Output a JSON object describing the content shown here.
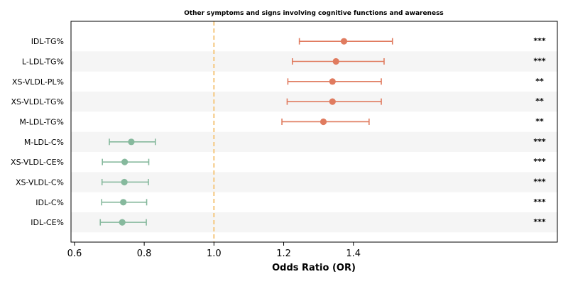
{
  "chart_data": {
    "type": "forest",
    "title": "Other symptoms and signs involving cognitive functions and awareness",
    "xlabel": "Odds Ratio (OR)",
    "xlim": [
      0.59,
      1.985
    ],
    "xticks": [
      "0.6",
      "0.8",
      "1.0",
      "1.2",
      "1.4"
    ],
    "xtick_values": [
      0.6,
      0.8,
      1.0,
      1.2,
      1.4
    ],
    "reference_line": 1.0,
    "grid": false,
    "colors": {
      "positive": "#e07b5f",
      "negative": "#86b99d",
      "reference": "#f5c77e",
      "band": "#f5f5f5"
    },
    "rows": [
      {
        "label": "IDL-TG%",
        "or": 1.373,
        "ci_low": 1.245,
        "ci_high": 1.512,
        "sig": "***",
        "direction": "positive"
      },
      {
        "label": "L-LDL-TG%",
        "or": 1.35,
        "ci_low": 1.225,
        "ci_high": 1.488,
        "sig": "***",
        "direction": "positive"
      },
      {
        "label": "XS-VLDL-PL%",
        "or": 1.34,
        "ci_low": 1.212,
        "ci_high": 1.48,
        "sig": "**",
        "direction": "positive"
      },
      {
        "label": "XS-VLDL-TG%",
        "or": 1.34,
        "ci_low": 1.21,
        "ci_high": 1.48,
        "sig": "**",
        "direction": "positive"
      },
      {
        "label": "M-LDL-TG%",
        "or": 1.314,
        "ci_low": 1.195,
        "ci_high": 1.445,
        "sig": "**",
        "direction": "positive"
      },
      {
        "label": "M-LDL-C%",
        "or": 0.763,
        "ci_low": 0.7,
        "ci_high": 0.832,
        "sig": "***",
        "direction": "negative"
      },
      {
        "label": "XS-VLDL-CE%",
        "or": 0.744,
        "ci_low": 0.68,
        "ci_high": 0.813,
        "sig": "***",
        "direction": "negative"
      },
      {
        "label": "XS-VLDL-C%",
        "or": 0.743,
        "ci_low": 0.679,
        "ci_high": 0.812,
        "sig": "***",
        "direction": "negative"
      },
      {
        "label": "IDL-C%",
        "or": 0.74,
        "ci_low": 0.678,
        "ci_high": 0.807,
        "sig": "***",
        "direction": "negative"
      },
      {
        "label": "IDL-CE%",
        "or": 0.737,
        "ci_low": 0.674,
        "ci_high": 0.806,
        "sig": "***",
        "direction": "negative"
      }
    ]
  }
}
